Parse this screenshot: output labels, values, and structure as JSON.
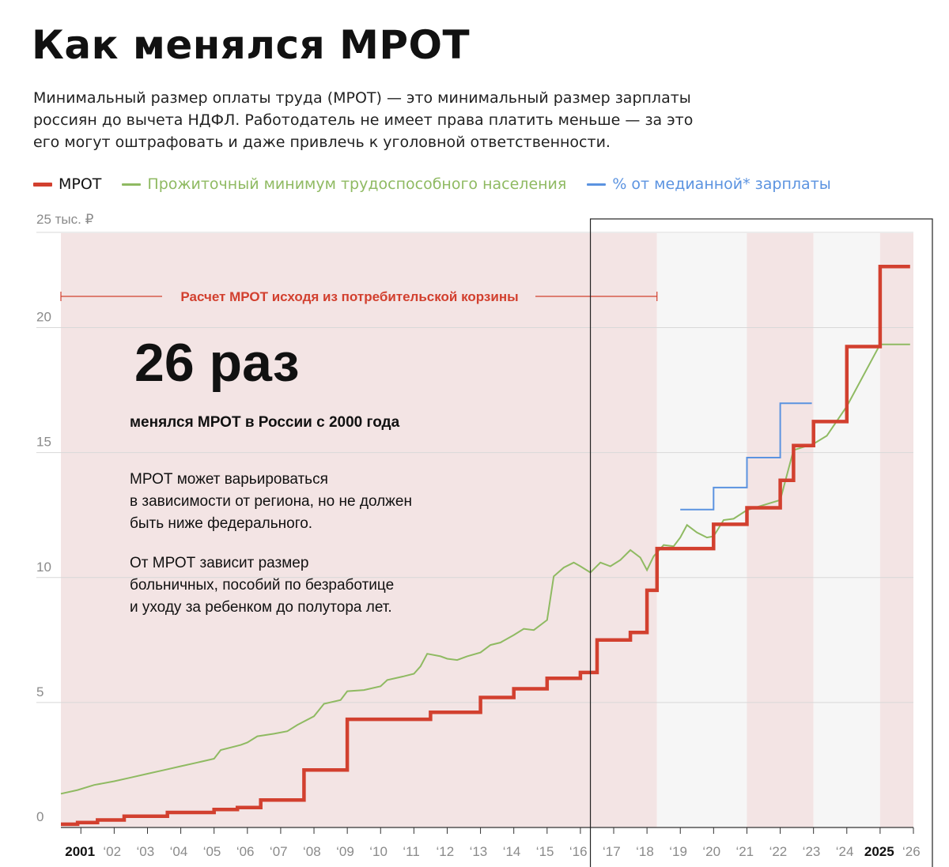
{
  "title": "Как менялся МРОТ",
  "lead": [
    "Минимальный размер оплаты труда (МРОТ) — это минимальный размер зарплаты",
    "россиян до вычета НДФЛ. Работодатель не имеет права платить меньше — за это",
    "его могут оштрафовать и даже привлечь к уголовной ответственности."
  ],
  "legend": {
    "mrot": "МРОТ",
    "subsistence": "Прожиточный минимум трудоспособного населения",
    "median": "% от медианной* зарплаты"
  },
  "colors": {
    "mrot": "#d2402f",
    "subsistence": "#8fba62",
    "median": "#5b93e0",
    "band_pink": "#f3e4e4",
    "band_grey": "#f6f6f6"
  },
  "annotations": {
    "basket": "Расчет МРОТ исходя из потребительской корзины",
    "big_number": "26 раз",
    "big_caption": "менялся МРОТ в России с 2000 года",
    "note1": [
      "МРОТ может варьироваться",
      "в зависимости от региона, но не должен",
      "быть ниже федерального."
    ],
    "note2": [
      "От МРОТ зависит размер",
      "больничных, пособий по безработице",
      "и уходу за ребенком до полутора лет."
    ]
  },
  "chart_data": {
    "type": "line",
    "y_unit_label": "25 тыс. ₽",
    "ylim": [
      0,
      25
    ],
    "yticks": [
      0,
      5,
      10,
      15,
      20
    ],
    "y_tick_labels": [
      "0",
      "5",
      "10",
      "15",
      "20"
    ],
    "xlim": [
      2000.4,
      2026
    ],
    "xticks": [
      2001,
      2002,
      2003,
      2004,
      2005,
      2006,
      2007,
      2008,
      2009,
      2010,
      2011,
      2012,
      2013,
      2014,
      2015,
      2016,
      2017,
      2018,
      2019,
      2020,
      2021,
      2022,
      2023,
      2024,
      2025,
      2026
    ],
    "x_tick_labels": [
      "2001",
      "‘02",
      "‘03",
      "‘04",
      "‘05",
      "‘06",
      "‘07",
      "‘08",
      "‘09",
      "‘10",
      "‘11",
      "‘12",
      "‘13",
      "‘14",
      "‘15",
      "‘16",
      "‘17",
      "‘18",
      "‘19",
      "‘20",
      "‘21",
      "‘22",
      "‘23",
      "‘24",
      "2025",
      "‘26"
    ],
    "bold_x_labels": [
      "2001",
      "2025"
    ],
    "bands": [
      {
        "from": 2000.4,
        "to": 2018.3,
        "color": "pink"
      },
      {
        "from": 2018.3,
        "to": 2021.0,
        "color": "grey"
      },
      {
        "from": 2021.0,
        "to": 2023.0,
        "color": "pink"
      },
      {
        "from": 2023.0,
        "to": 2025.0,
        "color": "grey"
      },
      {
        "from": 2025.0,
        "to": 2026.0,
        "color": "pink"
      }
    ],
    "basket_range": [
      2000.4,
      2018.3
    ],
    "highlight_box": [
      2016.3,
      2026.6
    ],
    "series": [
      {
        "name": "МРОТ",
        "key": "mrot",
        "step": true,
        "points": [
          [
            2000.4,
            0.13
          ],
          [
            2000.9,
            0.2
          ],
          [
            2001.5,
            0.3
          ],
          [
            2002.3,
            0.45
          ],
          [
            2003.6,
            0.6
          ],
          [
            2005.0,
            0.72
          ],
          [
            2005.7,
            0.8
          ],
          [
            2006.4,
            1.1
          ],
          [
            2007.7,
            2.3
          ],
          [
            2009.0,
            4.33
          ],
          [
            2011.5,
            4.61
          ],
          [
            2013.0,
            5.2
          ],
          [
            2014.0,
            5.55
          ],
          [
            2015.0,
            5.97
          ],
          [
            2016.0,
            6.2
          ],
          [
            2016.5,
            7.5
          ],
          [
            2017.5,
            7.8
          ],
          [
            2018.0,
            9.49
          ],
          [
            2018.3,
            11.16
          ],
          [
            2020.0,
            12.13
          ],
          [
            2021.0,
            12.79
          ],
          [
            2022.0,
            13.89
          ],
          [
            2022.4,
            15.28
          ],
          [
            2023.0,
            16.24
          ],
          [
            2024.0,
            19.24
          ],
          [
            2025.0,
            22.44
          ],
          [
            2025.9,
            22.44
          ]
        ]
      },
      {
        "name": "Прожиточный минимум трудоспособного населения",
        "key": "subsistence",
        "step": false,
        "points": [
          [
            2000.4,
            1.35
          ],
          [
            2000.9,
            1.5
          ],
          [
            2001.4,
            1.7
          ],
          [
            2002.0,
            1.85
          ],
          [
            2002.5,
            2.0
          ],
          [
            2003.0,
            2.15
          ],
          [
            2003.5,
            2.3
          ],
          [
            2004.0,
            2.45
          ],
          [
            2004.5,
            2.6
          ],
          [
            2005.0,
            2.75
          ],
          [
            2005.2,
            3.1
          ],
          [
            2005.8,
            3.3
          ],
          [
            2006.0,
            3.4
          ],
          [
            2006.3,
            3.65
          ],
          [
            2006.8,
            3.75
          ],
          [
            2007.2,
            3.85
          ],
          [
            2007.5,
            4.1
          ],
          [
            2008.0,
            4.45
          ],
          [
            2008.3,
            4.95
          ],
          [
            2008.8,
            5.1
          ],
          [
            2009.0,
            5.45
          ],
          [
            2009.5,
            5.5
          ],
          [
            2010.0,
            5.65
          ],
          [
            2010.2,
            5.9
          ],
          [
            2010.7,
            6.05
          ],
          [
            2011.0,
            6.15
          ],
          [
            2011.2,
            6.45
          ],
          [
            2011.4,
            6.95
          ],
          [
            2011.8,
            6.85
          ],
          [
            2012.0,
            6.75
          ],
          [
            2012.3,
            6.7
          ],
          [
            2012.6,
            6.85
          ],
          [
            2013.0,
            7.0
          ],
          [
            2013.3,
            7.3
          ],
          [
            2013.6,
            7.4
          ],
          [
            2014.0,
            7.7
          ],
          [
            2014.3,
            7.95
          ],
          [
            2014.6,
            7.9
          ],
          [
            2015.0,
            8.3
          ],
          [
            2015.2,
            10.05
          ],
          [
            2015.5,
            10.4
          ],
          [
            2015.8,
            10.6
          ],
          [
            2016.0,
            10.45
          ],
          [
            2016.3,
            10.2
          ],
          [
            2016.6,
            10.6
          ],
          [
            2016.9,
            10.45
          ],
          [
            2017.2,
            10.7
          ],
          [
            2017.5,
            11.1
          ],
          [
            2017.8,
            10.8
          ],
          [
            2018.0,
            10.3
          ],
          [
            2018.2,
            10.85
          ],
          [
            2018.5,
            11.3
          ],
          [
            2018.8,
            11.25
          ],
          [
            2019.0,
            11.6
          ],
          [
            2019.2,
            12.1
          ],
          [
            2019.5,
            11.8
          ],
          [
            2019.8,
            11.6
          ],
          [
            2020.0,
            11.65
          ],
          [
            2020.3,
            12.3
          ],
          [
            2020.6,
            12.35
          ],
          [
            2021.0,
            12.7
          ],
          [
            2022.0,
            13.1
          ],
          [
            2022.4,
            15.1
          ],
          [
            2023.0,
            15.35
          ],
          [
            2023.4,
            15.67
          ],
          [
            2024.0,
            16.85
          ],
          [
            2025.0,
            19.33
          ],
          [
            2025.9,
            19.33
          ]
        ]
      },
      {
        "name": "% от медианной* зарплаты",
        "key": "median",
        "step": true,
        "points": [
          [
            2019.0,
            12.72
          ],
          [
            2020.0,
            13.6
          ],
          [
            2021.0,
            14.8
          ],
          [
            2022.0,
            16.97
          ],
          [
            2022.95,
            16.97
          ]
        ]
      }
    ]
  }
}
